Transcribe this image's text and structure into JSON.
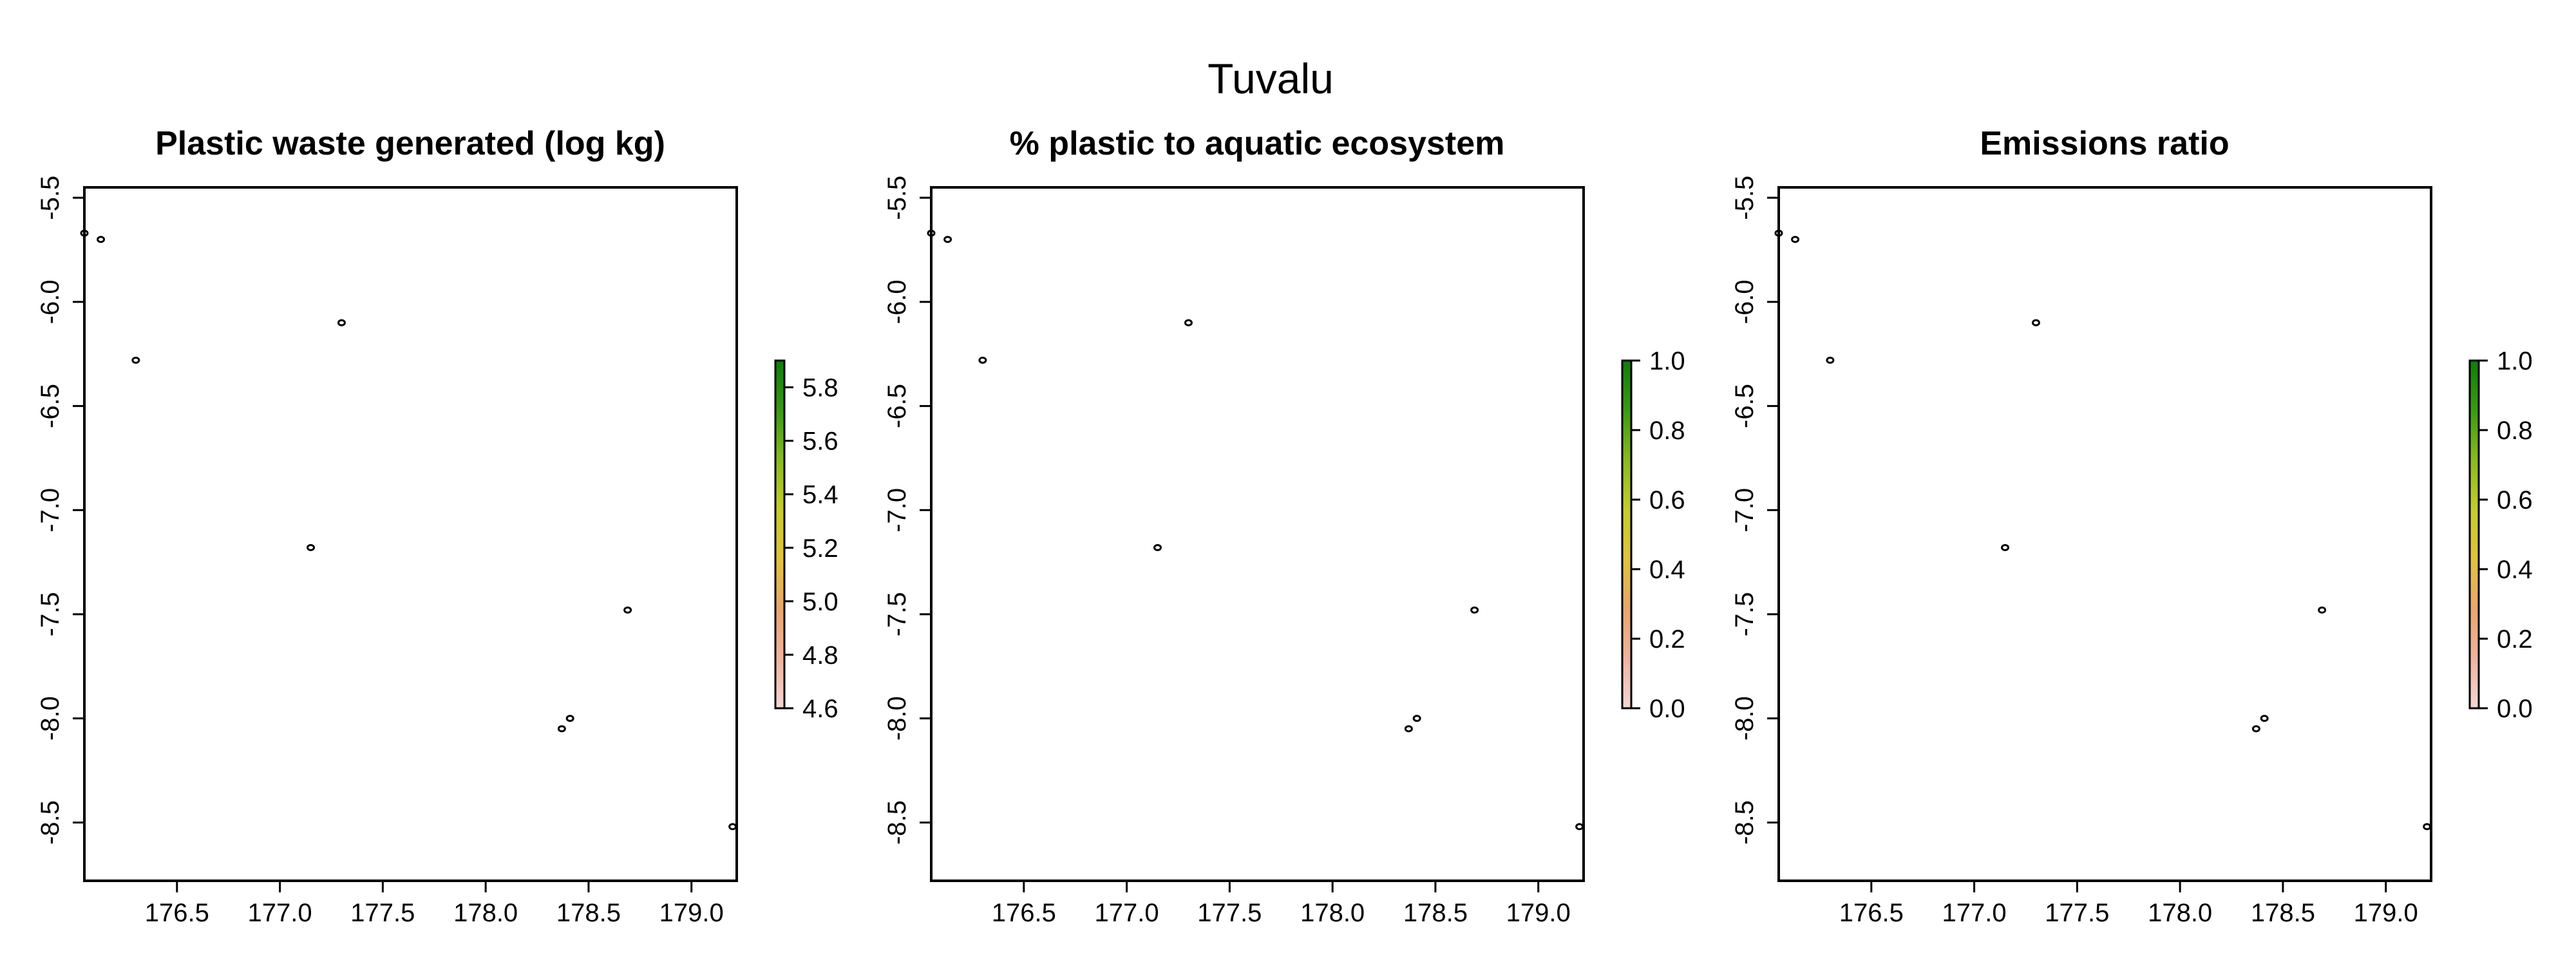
{
  "suptitle": "Tuvalu",
  "colors": {
    "frame": "#000000",
    "outline": "#000000",
    "colorbar": [
      "#f3d6d3",
      "#f0b39e",
      "#e9a56d",
      "#e1c33c",
      "#c5cc2a",
      "#89bb1f",
      "#3a9a12",
      "#0f7d0a"
    ]
  },
  "islands": [
    {
      "lon": 176.05,
      "lat": -5.67
    },
    {
      "lon": 176.13,
      "lat": -5.7
    },
    {
      "lon": 176.3,
      "lat": -6.28
    },
    {
      "lon": 177.3,
      "lat": -6.1
    },
    {
      "lon": 177.15,
      "lat": -7.18
    },
    {
      "lon": 178.69,
      "lat": -7.48
    },
    {
      "lon": 178.41,
      "lat": -8.0
    },
    {
      "lon": 178.37,
      "lat": -8.05
    },
    {
      "lon": 179.2,
      "lat": -8.52
    }
  ],
  "panels": [
    {
      "title": "Plastic waste generated (log kg)",
      "xlim": [
        176.05,
        179.22
      ],
      "ylim": [
        -8.78,
        -5.45
      ],
      "xticks": [
        "176.5",
        "177.0",
        "177.5",
        "178.0",
        "178.5",
        "179.0"
      ],
      "yticks": [
        "-5.5",
        "-6.0",
        "-6.5",
        "-7.0",
        "-7.5",
        "-8.0",
        "-8.5"
      ],
      "legend": {
        "min": 4.6,
        "max": 5.9,
        "ticks": [
          "4.6",
          "4.8",
          "5.0",
          "5.2",
          "5.4",
          "5.6",
          "5.8"
        ]
      }
    },
    {
      "title": "% plastic to aquatic ecosystem",
      "xlim": [
        176.05,
        179.22
      ],
      "ylim": [
        -8.78,
        -5.45
      ],
      "xticks": [
        "176.5",
        "177.0",
        "177.5",
        "178.0",
        "178.5",
        "179.0"
      ],
      "yticks": [
        "-5.5",
        "-6.0",
        "-6.5",
        "-7.0",
        "-7.5",
        "-8.0",
        "-8.5"
      ],
      "legend": {
        "min": 0.0,
        "max": 1.0,
        "ticks": [
          "0.0",
          "0.2",
          "0.4",
          "0.6",
          "0.8",
          "1.0"
        ]
      }
    },
    {
      "title": "Emissions ratio",
      "xlim": [
        176.05,
        179.22
      ],
      "ylim": [
        -8.78,
        -5.45
      ],
      "xticks": [
        "176.5",
        "177.0",
        "177.5",
        "178.0",
        "178.5",
        "179.0"
      ],
      "yticks": [
        "-5.5",
        "-6.0",
        "-6.5",
        "-7.0",
        "-7.5",
        "-8.0",
        "-8.5"
      ],
      "legend": {
        "min": 0.0,
        "max": 1.0,
        "ticks": [
          "0.0",
          "0.2",
          "0.4",
          "0.6",
          "0.8",
          "1.0"
        ]
      }
    }
  ]
}
